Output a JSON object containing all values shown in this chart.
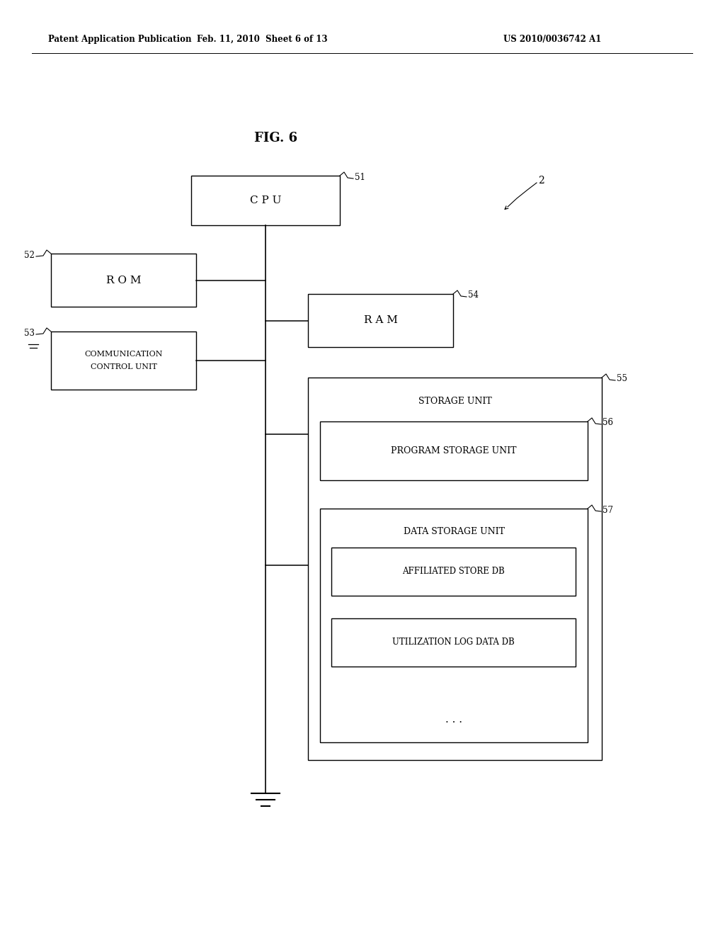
{
  "bg_color": "#ffffff",
  "header_left": "Patent Application Publication",
  "header_center": "Feb. 11, 2010  Sheet 6 of 13",
  "header_right": "US 2010/0036742 A1",
  "fig_title": "FIG. 6",
  "cpu_label": "C P U",
  "cpu_ref": "51",
  "device_ref": "2",
  "rom_label": "R O M",
  "rom_ref": "52",
  "comm_label1": "COMMUNICATION",
  "comm_label2": "CONTROL UNIT",
  "comm_ref": "53",
  "ram_label": "R A M",
  "ram_ref": "54",
  "storage_label": "STORAGE UNIT",
  "storage_ref": "55",
  "prog_label": "PROGRAM STORAGE UNIT",
  "prog_ref": "56",
  "data_storage_label": "DATA STORAGE UNIT",
  "data_storage_ref": "57",
  "aff_label": "AFFILIATED STORE DB",
  "util_label": "UTILIZATION LOG DATA DB",
  "dots": ". . ."
}
